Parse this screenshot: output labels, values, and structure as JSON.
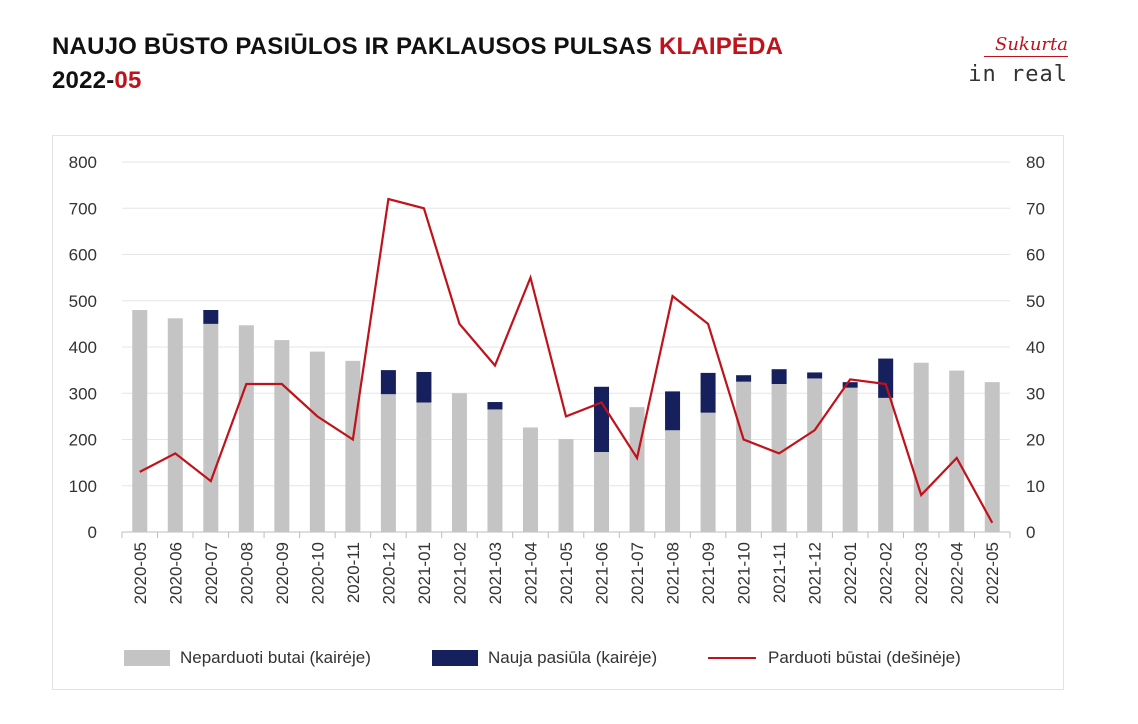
{
  "header": {
    "title_main": "NAUJO BŪSTO PASIŪLOS IR PAKLAUSOS PULSAS ",
    "title_city": "KLAIPĖDA",
    "period_year": "2022-",
    "period_month": "05"
  },
  "brand": {
    "script": "Sukurta",
    "logo": "in real"
  },
  "colors": {
    "unsold": "#c4c4c4",
    "new_supply": "#16205c",
    "sold": "#c0121b",
    "accent": "#c0121b"
  },
  "chart_data": {
    "type": "bar",
    "stacked": true,
    "categories": [
      "2020-05",
      "2020-06",
      "2020-07",
      "2020-08",
      "2020-09",
      "2020-10",
      "2020-11",
      "2020-12",
      "2021-01",
      "2021-02",
      "2021-03",
      "2021-04",
      "2021-05",
      "2021-06",
      "2021-07",
      "2021-08",
      "2021-09",
      "2021-10",
      "2021-11",
      "2021-12",
      "2022-01",
      "2022-02",
      "2022-03",
      "2022-04",
      "2022-05"
    ],
    "left_axis": {
      "ylim": [
        0,
        800
      ],
      "ticks": [
        "0",
        "100",
        "200",
        "300",
        "400",
        "500",
        "600",
        "700",
        "800"
      ]
    },
    "right_axis": {
      "ylim": [
        0,
        80
      ],
      "ticks": [
        "0",
        "10",
        "20",
        "30",
        "40",
        "50",
        "60",
        "70",
        "80"
      ]
    },
    "grid": true,
    "series": [
      {
        "name": "Neparduoti butai (kairėje)",
        "type": "bar",
        "axis": "left",
        "values": [
          480,
          462,
          450,
          447,
          415,
          390,
          370,
          298,
          280,
          300,
          265,
          226,
          201,
          173,
          270,
          220,
          258,
          325,
          320,
          332,
          312,
          290,
          366,
          349,
          324
        ]
      },
      {
        "name": "Nauja pasiūla (kairėje)",
        "type": "bar",
        "axis": "left",
        "values": [
          0,
          0,
          30,
          0,
          0,
          0,
          0,
          52,
          66,
          0,
          16,
          0,
          0,
          141,
          0,
          84,
          86,
          14,
          32,
          13,
          12,
          85,
          0,
          0,
          0
        ]
      },
      {
        "name": "Parduoti būstai (dešinėje)",
        "type": "line",
        "axis": "right",
        "values": [
          13,
          17,
          11,
          32,
          32,
          25,
          20,
          72,
          70,
          45,
          36,
          55,
          25,
          28,
          16,
          51,
          45,
          20,
          17,
          22,
          33,
          32,
          8,
          16,
          2
        ]
      }
    ],
    "legend_position": "bottom"
  }
}
